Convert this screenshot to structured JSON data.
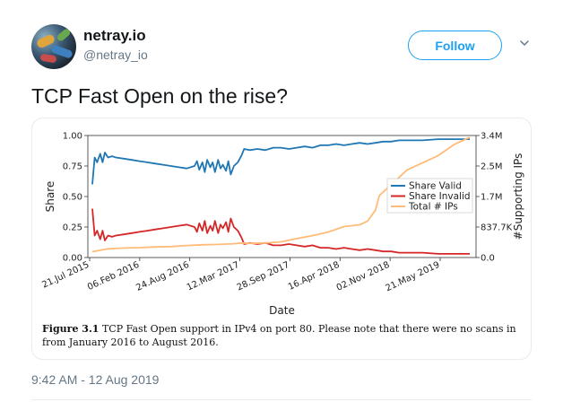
{
  "user": {
    "display_name": "netray.io",
    "handle": "@netray_io",
    "follow_label": "Follow"
  },
  "tweet": {
    "text": "TCP Fast Open on the rise?",
    "timestamp": "9:42 AM - 12 Aug 2019"
  },
  "figure": {
    "caption_label": "Figure 3.1",
    "caption_text": "TCP Fast Open support in IPv4 on port 80. Please note that there were no scans in from January 2016 to August 2016."
  },
  "chart_data": {
    "type": "line",
    "xlabel": "Date",
    "ylabel": "Share",
    "y2label": "#Supporting IPs",
    "ylim": [
      0,
      1
    ],
    "y2lim": [
      0,
      3350000
    ],
    "x_tick_labels": [
      "21.Jul 2015",
      "06.Feb 2016",
      "24.Aug 2016",
      "12.Mar 2017",
      "28.Sep 2017",
      "16.Apr 2018",
      "02.Nov 2018",
      "21.May 2019"
    ],
    "y_tick_labels": [
      "0.00",
      "0.25",
      "0.50",
      "0.75",
      "1.00"
    ],
    "y2_tick_labels": [
      "0.0",
      "837.7K",
      "1.7M",
      "2.5M",
      "3.4M"
    ],
    "legend_position": "center-right",
    "x_unit": "months since Jul 2015",
    "series": [
      {
        "name": "Share Valid",
        "color": "#1f77b4",
        "axis": "left",
        "points": [
          [
            0,
            0.6
          ],
          [
            0.3,
            0.82
          ],
          [
            0.6,
            0.78
          ],
          [
            1,
            0.85
          ],
          [
            1.3,
            0.78
          ],
          [
            1.6,
            0.86
          ],
          [
            2,
            0.82
          ],
          [
            2.5,
            0.83
          ],
          [
            3,
            0.82
          ],
          [
            4,
            0.81
          ],
          [
            5,
            0.8
          ],
          [
            6,
            0.79
          ],
          [
            7,
            0.78
          ],
          [
            8,
            0.77
          ],
          [
            9,
            0.76
          ],
          [
            10,
            0.75
          ],
          [
            11,
            0.74
          ],
          [
            12,
            0.73
          ],
          [
            13,
            0.75
          ],
          [
            13.3,
            0.79
          ],
          [
            13.6,
            0.72
          ],
          [
            14,
            0.78
          ],
          [
            14.3,
            0.7
          ],
          [
            14.6,
            0.8
          ],
          [
            15,
            0.74
          ],
          [
            15.3,
            0.78
          ],
          [
            15.6,
            0.7
          ],
          [
            16,
            0.8
          ],
          [
            16.3,
            0.73
          ],
          [
            16.6,
            0.76
          ],
          [
            17,
            0.71
          ],
          [
            17.3,
            0.79
          ],
          [
            17.6,
            0.68
          ],
          [
            18,
            0.75
          ],
          [
            18.5,
            0.78
          ],
          [
            19,
            0.84
          ],
          [
            19.3,
            0.89
          ],
          [
            20,
            0.88
          ],
          [
            21,
            0.89
          ],
          [
            22,
            0.88
          ],
          [
            23,
            0.9
          ],
          [
            24,
            0.9
          ],
          [
            25,
            0.89
          ],
          [
            26,
            0.9
          ],
          [
            27,
            0.91
          ],
          [
            28,
            0.9
          ],
          [
            29,
            0.92
          ],
          [
            30,
            0.92
          ],
          [
            31,
            0.93
          ],
          [
            32,
            0.92
          ],
          [
            33,
            0.93
          ],
          [
            34,
            0.94
          ],
          [
            35,
            0.93
          ],
          [
            36,
            0.94
          ],
          [
            37,
            0.95
          ],
          [
            38,
            0.95
          ],
          [
            39,
            0.96
          ],
          [
            40,
            0.96
          ],
          [
            42,
            0.96
          ],
          [
            44,
            0.97
          ],
          [
            46,
            0.97
          ],
          [
            48,
            0.97
          ]
        ]
      },
      {
        "name": "Share Invalid",
        "color": "#d62728",
        "axis": "left",
        "points": [
          [
            0,
            0.4
          ],
          [
            0.3,
            0.18
          ],
          [
            0.6,
            0.22
          ],
          [
            1,
            0.15
          ],
          [
            1.3,
            0.22
          ],
          [
            1.6,
            0.14
          ],
          [
            2,
            0.18
          ],
          [
            2.5,
            0.17
          ],
          [
            3,
            0.18
          ],
          [
            4,
            0.19
          ],
          [
            5,
            0.2
          ],
          [
            6,
            0.21
          ],
          [
            7,
            0.22
          ],
          [
            8,
            0.23
          ],
          [
            9,
            0.24
          ],
          [
            10,
            0.25
          ],
          [
            11,
            0.26
          ],
          [
            12,
            0.27
          ],
          [
            13,
            0.25
          ],
          [
            13.3,
            0.21
          ],
          [
            13.6,
            0.28
          ],
          [
            14,
            0.22
          ],
          [
            14.3,
            0.3
          ],
          [
            14.6,
            0.2
          ],
          [
            15,
            0.26
          ],
          [
            15.3,
            0.22
          ],
          [
            15.6,
            0.3
          ],
          [
            16,
            0.2
          ],
          [
            16.3,
            0.27
          ],
          [
            16.6,
            0.24
          ],
          [
            17,
            0.29
          ],
          [
            17.3,
            0.21
          ],
          [
            17.6,
            0.32
          ],
          [
            18,
            0.25
          ],
          [
            18.5,
            0.22
          ],
          [
            19,
            0.16
          ],
          [
            19.3,
            0.11
          ],
          [
            20,
            0.12
          ],
          [
            21,
            0.11
          ],
          [
            22,
            0.12
          ],
          [
            23,
            0.1
          ],
          [
            24,
            0.1
          ],
          [
            25,
            0.11
          ],
          [
            26,
            0.1
          ],
          [
            27,
            0.09
          ],
          [
            28,
            0.1
          ],
          [
            29,
            0.08
          ],
          [
            30,
            0.08
          ],
          [
            31,
            0.07
          ],
          [
            32,
            0.08
          ],
          [
            33,
            0.07
          ],
          [
            34,
            0.06
          ],
          [
            35,
            0.07
          ],
          [
            36,
            0.06
          ],
          [
            37,
            0.05
          ],
          [
            38,
            0.05
          ],
          [
            39,
            0.04
          ],
          [
            40,
            0.04
          ],
          [
            42,
            0.04
          ],
          [
            44,
            0.03
          ],
          [
            46,
            0.03
          ],
          [
            48,
            0.03
          ]
        ]
      },
      {
        "name": "Total # IPs",
        "color": "#ffbb78",
        "axis": "right",
        "points": [
          [
            0,
            160000
          ],
          [
            1,
            200000
          ],
          [
            2,
            240000
          ],
          [
            4,
            260000
          ],
          [
            6,
            270000
          ],
          [
            8,
            290000
          ],
          [
            10,
            300000
          ],
          [
            12,
            330000
          ],
          [
            14,
            350000
          ],
          [
            16,
            360000
          ],
          [
            18,
            380000
          ],
          [
            19,
            400000
          ],
          [
            20,
            390000
          ],
          [
            22,
            400000
          ],
          [
            24,
            430000
          ],
          [
            26,
            520000
          ],
          [
            28,
            600000
          ],
          [
            30,
            700000
          ],
          [
            32,
            850000
          ],
          [
            34,
            900000
          ],
          [
            35,
            1000000
          ],
          [
            36,
            1300000
          ],
          [
            36.5,
            1700000
          ],
          [
            37,
            1800000
          ],
          [
            38,
            2000000
          ],
          [
            39,
            2200000
          ],
          [
            40,
            2400000
          ],
          [
            42,
            2600000
          ],
          [
            44,
            2800000
          ],
          [
            46,
            3100000
          ],
          [
            48,
            3300000
          ]
        ]
      }
    ]
  }
}
